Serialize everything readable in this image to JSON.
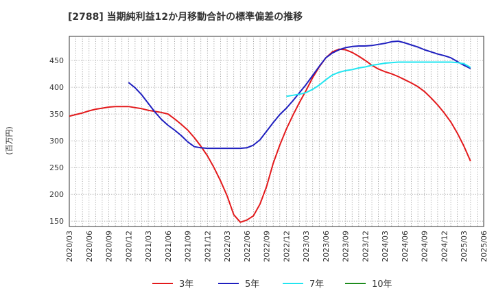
{
  "chart_data": {
    "type": "line",
    "title": "[2788]  当期純利益12か月移動合計の標準偏差の推移",
    "ylabel": "(百万円)",
    "xlabel": "",
    "ylim": [
      140,
      495
    ],
    "y_ticks": [
      150,
      200,
      250,
      300,
      350,
      400,
      450
    ],
    "x_tick_labels": [
      "2020/03",
      "2020/06",
      "2020/09",
      "2020/12",
      "2021/03",
      "2021/06",
      "2021/09",
      "2021/12",
      "2022/03",
      "2022/06",
      "2022/09",
      "2022/12",
      "2023/03",
      "2023/06",
      "2023/09",
      "2023/12",
      "2024/03",
      "2024/06",
      "2024/09",
      "2024/12",
      "2025/03",
      "2025/06"
    ],
    "grid": true,
    "legend_position": "bottom",
    "series": [
      {
        "name": "3年",
        "color": "#e31a1c",
        "points": [
          [
            "2020/03",
            346
          ],
          [
            "2020/04",
            349
          ],
          [
            "2020/05",
            352
          ],
          [
            "2020/06",
            356
          ],
          [
            "2020/07",
            359
          ],
          [
            "2020/08",
            361
          ],
          [
            "2020/09",
            363
          ],
          [
            "2020/10",
            364
          ],
          [
            "2020/11",
            364
          ],
          [
            "2020/12",
            364
          ],
          [
            "2021/01",
            362
          ],
          [
            "2021/02",
            360
          ],
          [
            "2021/03",
            357
          ],
          [
            "2021/04",
            355
          ],
          [
            "2021/05",
            353
          ],
          [
            "2021/06",
            350
          ],
          [
            "2021/07",
            341
          ],
          [
            "2021/08",
            331
          ],
          [
            "2021/09",
            320
          ],
          [
            "2021/10",
            306
          ],
          [
            "2021/11",
            290
          ],
          [
            "2021/12",
            272
          ],
          [
            "2022/01",
            250
          ],
          [
            "2022/02",
            225
          ],
          [
            "2022/03",
            197
          ],
          [
            "2022/04",
            162
          ],
          [
            "2022/05",
            148
          ],
          [
            "2022/06",
            152
          ],
          [
            "2022/07",
            160
          ],
          [
            "2022/08",
            182
          ],
          [
            "2022/09",
            215
          ],
          [
            "2022/10",
            258
          ],
          [
            "2022/11",
            292
          ],
          [
            "2022/12",
            322
          ],
          [
            "2023/01",
            348
          ],
          [
            "2023/02",
            372
          ],
          [
            "2023/03",
            394
          ],
          [
            "2023/04",
            418
          ],
          [
            "2023/05",
            438
          ],
          [
            "2023/06",
            455
          ],
          [
            "2023/07",
            466
          ],
          [
            "2023/08",
            471
          ],
          [
            "2023/09",
            470
          ],
          [
            "2023/10",
            465
          ],
          [
            "2023/11",
            458
          ],
          [
            "2023/12",
            450
          ],
          [
            "2024/01",
            441
          ],
          [
            "2024/02",
            434
          ],
          [
            "2024/03",
            429
          ],
          [
            "2024/04",
            425
          ],
          [
            "2024/05",
            420
          ],
          [
            "2024/06",
            414
          ],
          [
            "2024/07",
            408
          ],
          [
            "2024/08",
            401
          ],
          [
            "2024/09",
            392
          ],
          [
            "2024/10",
            380
          ],
          [
            "2024/11",
            367
          ],
          [
            "2024/12",
            352
          ],
          [
            "2025/01",
            335
          ],
          [
            "2025/02",
            314
          ],
          [
            "2025/03",
            290
          ],
          [
            "2025/04",
            262
          ]
        ]
      },
      {
        "name": "5年",
        "color": "#1f1fbf",
        "points": [
          [
            "2020/12",
            409
          ],
          [
            "2021/01",
            399
          ],
          [
            "2021/02",
            386
          ],
          [
            "2021/03",
            370
          ],
          [
            "2021/04",
            354
          ],
          [
            "2021/05",
            340
          ],
          [
            "2021/06",
            329
          ],
          [
            "2021/07",
            320
          ],
          [
            "2021/08",
            310
          ],
          [
            "2021/09",
            298
          ],
          [
            "2021/10",
            289
          ],
          [
            "2021/11",
            287
          ],
          [
            "2021/12",
            286
          ],
          [
            "2022/01",
            286
          ],
          [
            "2022/02",
            286
          ],
          [
            "2022/03",
            286
          ],
          [
            "2022/04",
            286
          ],
          [
            "2022/05",
            286
          ],
          [
            "2022/06",
            287
          ],
          [
            "2022/07",
            292
          ],
          [
            "2022/08",
            302
          ],
          [
            "2022/09",
            318
          ],
          [
            "2022/10",
            334
          ],
          [
            "2022/11",
            349
          ],
          [
            "2022/12",
            361
          ],
          [
            "2023/01",
            375
          ],
          [
            "2023/02",
            390
          ],
          [
            "2023/03",
            405
          ],
          [
            "2023/04",
            422
          ],
          [
            "2023/05",
            439
          ],
          [
            "2023/06",
            455
          ],
          [
            "2023/07",
            464
          ],
          [
            "2023/08",
            470
          ],
          [
            "2023/09",
            474
          ],
          [
            "2023/10",
            476
          ],
          [
            "2023/11",
            477
          ],
          [
            "2023/12",
            477
          ],
          [
            "2024/01",
            478
          ],
          [
            "2024/02",
            480
          ],
          [
            "2024/03",
            482
          ],
          [
            "2024/04",
            485
          ],
          [
            "2024/05",
            486
          ],
          [
            "2024/06",
            483
          ],
          [
            "2024/07",
            479
          ],
          [
            "2024/08",
            475
          ],
          [
            "2024/09",
            470
          ],
          [
            "2024/10",
            466
          ],
          [
            "2024/11",
            462
          ],
          [
            "2024/12",
            459
          ],
          [
            "2025/01",
            455
          ],
          [
            "2025/02",
            448
          ],
          [
            "2025/03",
            441
          ],
          [
            "2025/04",
            435
          ]
        ]
      },
      {
        "name": "7年",
        "color": "#22e5f0",
        "points": [
          [
            "2022/12",
            383
          ],
          [
            "2023/01",
            385
          ],
          [
            "2023/02",
            387
          ],
          [
            "2023/03",
            390
          ],
          [
            "2023/04",
            396
          ],
          [
            "2023/05",
            404
          ],
          [
            "2023/06",
            414
          ],
          [
            "2023/07",
            423
          ],
          [
            "2023/08",
            428
          ],
          [
            "2023/09",
            431
          ],
          [
            "2023/10",
            433
          ],
          [
            "2023/11",
            436
          ],
          [
            "2023/12",
            438
          ],
          [
            "2024/01",
            441
          ],
          [
            "2024/02",
            443
          ],
          [
            "2024/03",
            445
          ],
          [
            "2024/04",
            446
          ],
          [
            "2024/05",
            447
          ],
          [
            "2024/06",
            447
          ],
          [
            "2024/07",
            447
          ],
          [
            "2024/08",
            447
          ],
          [
            "2024/09",
            447
          ],
          [
            "2024/10",
            447
          ],
          [
            "2024/11",
            447
          ],
          [
            "2024/12",
            447
          ],
          [
            "2025/01",
            447
          ],
          [
            "2025/02",
            446
          ],
          [
            "2025/03",
            444
          ],
          [
            "2025/04",
            437
          ]
        ]
      },
      {
        "name": "10年",
        "color": "#1e8c1e",
        "points": []
      }
    ]
  }
}
